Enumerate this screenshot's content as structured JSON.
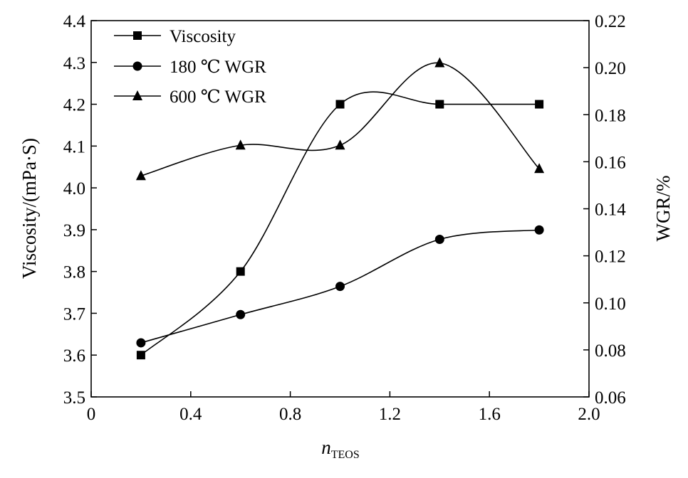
{
  "chart_data": {
    "type": "line",
    "xlabel_main": "n",
    "xlabel_sub": "TEOS",
    "ylabel": "Viscosity/(mPa·S)",
    "y2label": "WGR/%",
    "xlim": [
      0,
      2.0
    ],
    "ylim": [
      3.5,
      4.4
    ],
    "y2lim": [
      0.06,
      0.22
    ],
    "x_ticks": [
      "0",
      "0.4",
      "0.8",
      "1.2",
      "1.6",
      "2.0"
    ],
    "y_ticks": [
      "3.5",
      "3.6",
      "3.7",
      "3.8",
      "3.9",
      "4.0",
      "4.1",
      "4.2",
      "4.3",
      "4.4"
    ],
    "y2_ticks": [
      "0.06",
      "0.08",
      "0.10",
      "0.12",
      "0.14",
      "0.16",
      "0.18",
      "0.20",
      "0.22"
    ],
    "legend_position": "top-left",
    "grid": false,
    "series": [
      {
        "name": "Viscosity",
        "axis": "left",
        "marker": "square",
        "x": [
          0.2,
          0.6,
          1.0,
          1.4,
          1.8
        ],
        "y": [
          3.6,
          3.8,
          4.2,
          4.2,
          4.2
        ]
      },
      {
        "name": "180 ℃ WGR",
        "axis": "right",
        "marker": "circle",
        "x": [
          0.2,
          0.6,
          1.0,
          1.4,
          1.8
        ],
        "y": [
          0.083,
          0.095,
          0.107,
          0.127,
          0.131
        ]
      },
      {
        "name": "600 ℃ WGR",
        "axis": "right",
        "marker": "triangle",
        "x": [
          0.2,
          0.6,
          1.0,
          1.4,
          1.8
        ],
        "y": [
          0.154,
          0.167,
          0.167,
          0.202,
          0.157
        ]
      }
    ]
  }
}
